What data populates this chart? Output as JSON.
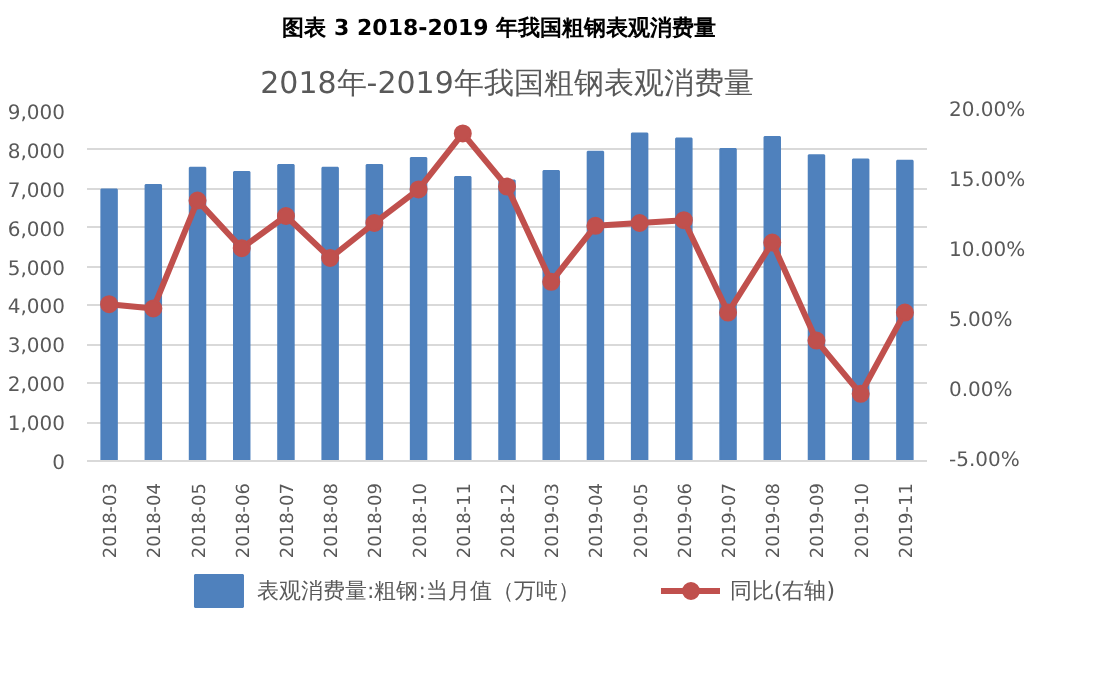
{
  "chart_data": {
    "type": "bar",
    "title": "2018年-2019年我国粗钢表观消费量",
    "subtitle": "图表 3   2018-2019 年我国粗钢表观消费量",
    "categories": [
      "2018-03",
      "2018-04",
      "2018-05",
      "2018-06",
      "2018-07",
      "2018-08",
      "2018-09",
      "2018-10",
      "2018-11",
      "2018-12",
      "2019-03",
      "2019-04",
      "2019-05",
      "2019-06",
      "2019-07",
      "2019-08",
      "2019-09",
      "2019-10",
      "2019-11"
    ],
    "series": [
      {
        "name": "表观消费量:粗钢:当月值（万吨）",
        "color": "#4f81bd",
        "values": [
          6980,
          7100,
          7540,
          7430,
          7610,
          7540,
          7610,
          7790,
          7300,
          7210,
          7460,
          7950,
          8420,
          8290,
          8020,
          8330,
          7860,
          7750,
          7720
        ]
      },
      {
        "name": "同比(右轴)",
        "type": "line",
        "axis": "y2",
        "color": "#c0504d",
        "marker": "circle",
        "values": [
          6.2,
          5.9,
          13.6,
          10.2,
          12.5,
          9.5,
          12.0,
          14.4,
          18.4,
          14.6,
          7.8,
          11.8,
          12.0,
          12.2,
          5.6,
          10.6,
          3.6,
          -0.2,
          5.6
        ]
      }
    ],
    "ylim": [
      0,
      9000
    ],
    "yticks": [
      0,
      {
        "value": 1000,
        "label": "1,000"
      },
      {
        "value": 2000,
        "label": "2,000"
      },
      {
        "value": 3000,
        "label": "3,000"
      },
      {
        "value": 4000,
        "label": "4,000"
      },
      {
        "value": 5000,
        "label": "5,000"
      },
      {
        "value": 6000,
        "label": "6,000"
      },
      {
        "value": 7000,
        "label": "7,000"
      },
      {
        "value": 8000,
        "label": "8,000"
      },
      {
        "value": 9000,
        "label": "9,000"
      }
    ],
    "y2lim": [
      -5,
      20
    ],
    "y2ticks": [
      {
        "value": -5,
        "label": "-5.00%"
      },
      {
        "value": 0,
        "label": "0.00%"
      },
      {
        "value": 5,
        "label": "5.00%"
      },
      {
        "value": 10,
        "label": "10.00%"
      },
      {
        "value": 15,
        "label": "15.00%"
      },
      {
        "value": 20,
        "label": "20.00%"
      }
    ],
    "grid": "y",
    "legend": "bottom"
  }
}
